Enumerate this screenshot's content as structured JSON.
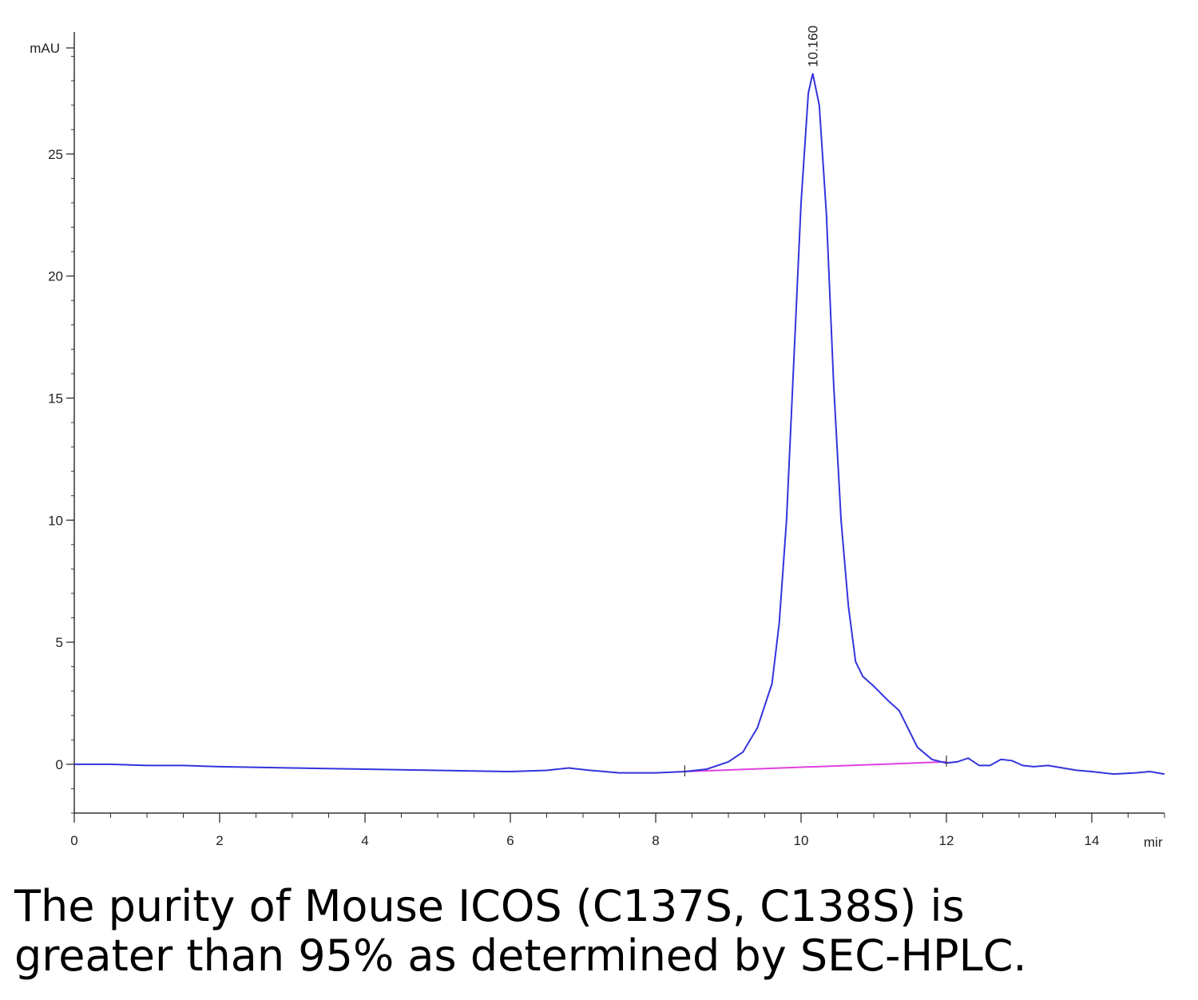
{
  "chart_data": {
    "type": "line",
    "ylabel": "mAU",
    "xlabel": "mir",
    "xlim": [
      0,
      15
    ],
    "ylim": [
      -2,
      30
    ],
    "x_ticks": [
      0,
      2,
      4,
      6,
      8,
      10,
      12,
      14
    ],
    "y_ticks": [
      0,
      5,
      10,
      15,
      20,
      25
    ],
    "grid": false,
    "peak_label": "10.160",
    "colors": {
      "trace": "#3333dd",
      "baseline": "#e040e0",
      "axis": "#333333"
    },
    "series": [
      {
        "x": [
          0,
          0.5,
          1,
          1.5,
          2,
          3,
          4,
          5,
          6,
          6.5,
          6.8,
          7.1,
          7.5,
          8,
          8.4,
          8.7,
          9.0,
          9.2,
          9.4,
          9.6,
          9.7,
          9.8,
          9.9,
          10.0,
          10.1,
          10.16,
          10.25,
          10.35,
          10.45,
          10.55,
          10.65,
          10.75,
          10.85,
          11.0,
          11.2,
          11.35,
          11.5,
          11.6,
          11.8,
          12.0,
          12.15,
          12.3,
          12.45,
          12.6,
          12.75,
          12.9,
          13.05,
          13.2,
          13.4,
          13.6,
          13.8,
          14.0,
          14.3,
          14.6,
          14.8,
          15.0
        ],
        "y": [
          0.0,
          0.0,
          -0.05,
          -0.05,
          -0.1,
          -0.15,
          -0.2,
          -0.25,
          -0.3,
          -0.25,
          -0.15,
          -0.25,
          -0.35,
          -0.35,
          -0.3,
          -0.2,
          0.1,
          0.5,
          1.5,
          3.3,
          5.8,
          10.0,
          16.5,
          23.0,
          27.5,
          28.3,
          27.0,
          22.5,
          15.5,
          10.0,
          6.5,
          4.2,
          3.6,
          3.2,
          2.6,
          2.2,
          1.3,
          0.7,
          0.2,
          0.05,
          0.1,
          0.25,
          -0.05,
          -0.05,
          0.2,
          0.15,
          -0.05,
          -0.1,
          -0.05,
          -0.15,
          -0.25,
          -0.3,
          -0.4,
          -0.35,
          -0.3,
          -0.4
        ]
      },
      {
        "x": [
          8.4,
          12.0
        ],
        "y": [
          -0.3,
          0.1
        ]
      }
    ]
  },
  "caption": {
    "line1": "The purity of Mouse ICOS (C137S, C138S) is",
    "line2": "greater than 95% as determined by SEC-HPLC."
  }
}
